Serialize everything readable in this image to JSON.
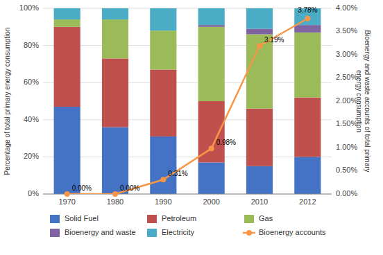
{
  "chart_data": {
    "type": "bar",
    "stacked": true,
    "categories": [
      "1970",
      "1980",
      "1990",
      "2000",
      "2010",
      "2012"
    ],
    "ylabel": "Percentage of total primary energy consumption",
    "y2label": "Bioenergy and waste accounts of total primary\nenergy consumption",
    "ylim": [
      0,
      100
    ],
    "yticks": [
      {
        "value": 0,
        "label": "0%"
      },
      {
        "value": 20,
        "label": "20%"
      },
      {
        "value": 40,
        "label": "40%"
      },
      {
        "value": 60,
        "label": "60%"
      },
      {
        "value": 80,
        "label": "80%"
      },
      {
        "value": 100,
        "label": "100%"
      }
    ],
    "y2lim": [
      0,
      4.0
    ],
    "y2ticks": [
      {
        "value": 0.0,
        "label": "0.00%"
      },
      {
        "value": 0.5,
        "label": "0.50%"
      },
      {
        "value": 1.0,
        "label": "1.00%"
      },
      {
        "value": 1.5,
        "label": "1.50%"
      },
      {
        "value": 2.0,
        "label": "2.00%"
      },
      {
        "value": 2.5,
        "label": "2.50%"
      },
      {
        "value": 3.0,
        "label": "3.00%"
      },
      {
        "value": 3.5,
        "label": "3.50%"
      },
      {
        "value": 4.0,
        "label": "4.00%"
      }
    ],
    "grid": true,
    "legend": "bottom",
    "series": [
      {
        "name": "Solid Fuel",
        "color": "#4472C4",
        "values": [
          47,
          36,
          31,
          17,
          15,
          20
        ]
      },
      {
        "name": "Petroleum",
        "color": "#C0504D",
        "values": [
          43,
          37,
          36,
          33,
          31,
          32
        ]
      },
      {
        "name": "Gas",
        "color": "#9BBB59",
        "values": [
          4,
          21,
          21,
          40,
          40,
          35
        ]
      },
      {
        "name": "Bioenergy and waste",
        "color": "#8064A2",
        "values": [
          0,
          0,
          0,
          1,
          3,
          4
        ]
      },
      {
        "name": "Electricity",
        "color": "#4BACC6",
        "values": [
          6,
          6,
          12,
          9,
          11,
          9
        ]
      },
      {
        "name": "Bioenergy accounts",
        "type": "line",
        "axis": "y2",
        "color": "#F79646",
        "marker": "circle",
        "line_style": "solid",
        "data_labels": true,
        "values": [
          0.0,
          0.0,
          0.31,
          0.98,
          3.19,
          3.78
        ],
        "value_labels": [
          "0.00%",
          "0.00%",
          "0.31%",
          "0.98%",
          "3.19%",
          "3.78%"
        ]
      }
    ]
  }
}
